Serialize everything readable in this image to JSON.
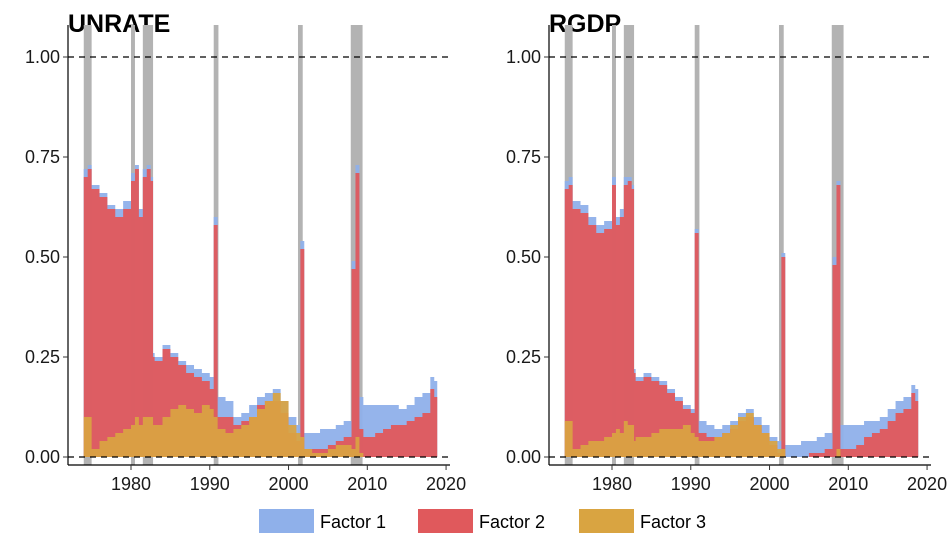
{
  "chart_data": [
    {
      "type": "area",
      "title": "UNRATE",
      "xlabel": "",
      "ylabel": "",
      "xlim": [
        1972,
        2020.5
      ],
      "ylim": [
        -0.02,
        1.08
      ],
      "xticks": [
        1980,
        1990,
        2000,
        2010,
        2020
      ],
      "yticks": [
        "0.00",
        "0.25",
        "0.50",
        "0.75",
        "1.00"
      ],
      "reference_lines": [
        0,
        1
      ],
      "recessions": [
        [
          1974.0,
          1975.0
        ],
        [
          1980.0,
          1980.5
        ],
        [
          1981.5,
          1982.8
        ],
        [
          1990.5,
          1991.1
        ],
        [
          2001.2,
          2001.8
        ],
        [
          2007.9,
          2009.4
        ]
      ],
      "x": [
        1974,
        1974.5,
        1975,
        1976,
        1977,
        1978,
        1979,
        1980,
        1980.5,
        1981,
        1981.5,
        1982,
        1982.5,
        1982.8,
        1983,
        1984,
        1985,
        1986,
        1987,
        1988,
        1989,
        1990,
        1990.5,
        1991,
        1992,
        1993,
        1994,
        1995,
        1996,
        1997,
        1998,
        1999,
        2000,
        2001,
        2001.5,
        2002,
        2003,
        2004,
        2005,
        2006,
        2007,
        2008,
        2008.5,
        2009,
        2009.5,
        2010,
        2011,
        2012,
        2013,
        2014,
        2015,
        2016,
        2017,
        2018,
        2018.5
      ],
      "series": [
        {
          "name": "Factor 1",
          "color": "#8fb0ea",
          "values": [
            0.72,
            0.73,
            0.68,
            0.66,
            0.63,
            0.62,
            0.64,
            0.71,
            0.73,
            0.62,
            0.72,
            0.73,
            0.7,
            0.26,
            0.25,
            0.28,
            0.26,
            0.24,
            0.23,
            0.22,
            0.21,
            0.2,
            0.6,
            0.15,
            0.14,
            0.1,
            0.11,
            0.13,
            0.15,
            0.16,
            0.17,
            0.14,
            0.1,
            0.08,
            0.54,
            0.06,
            0.06,
            0.07,
            0.07,
            0.08,
            0.09,
            0.49,
            0.73,
            0.15,
            0.13,
            0.13,
            0.13,
            0.13,
            0.13,
            0.12,
            0.13,
            0.15,
            0.16,
            0.2,
            0.19
          ]
        },
        {
          "name": "Factor 2",
          "color": "#e0595c",
          "values": [
            0.7,
            0.72,
            0.67,
            0.65,
            0.62,
            0.6,
            0.62,
            0.69,
            0.72,
            0.6,
            0.7,
            0.72,
            0.69,
            0.25,
            0.24,
            0.27,
            0.25,
            0.23,
            0.21,
            0.2,
            0.19,
            0.17,
            0.58,
            0.1,
            0.1,
            0.08,
            0.09,
            0.1,
            0.13,
            0.14,
            0.14,
            0.11,
            0.06,
            0.04,
            0.52,
            0.02,
            0.02,
            0.02,
            0.03,
            0.04,
            0.05,
            0.47,
            0.71,
            0.07,
            0.05,
            0.05,
            0.06,
            0.07,
            0.08,
            0.08,
            0.09,
            0.1,
            0.11,
            0.17,
            0.15
          ]
        },
        {
          "name": "Factor 3",
          "color": "#d9a441",
          "values": [
            0.1,
            0.1,
            0.02,
            0.04,
            0.05,
            0.06,
            0.07,
            0.08,
            0.1,
            0.08,
            0.1,
            0.1,
            0.1,
            0.08,
            0.08,
            0.1,
            0.12,
            0.13,
            0.12,
            0.11,
            0.13,
            0.12,
            0.1,
            0.07,
            0.06,
            0.07,
            0.08,
            0.1,
            0.12,
            0.14,
            0.16,
            0.14,
            0.08,
            0.06,
            0.05,
            0.02,
            0.01,
            0.01,
            0.02,
            0.03,
            0.03,
            0.02,
            0.05,
            0.01,
            0.0,
            0.0,
            0.0,
            0.0,
            0.0,
            0.0,
            0.0,
            0.0,
            0.0,
            0.0,
            0.0
          ]
        }
      ]
    },
    {
      "type": "area",
      "title": "RGDP",
      "xlabel": "",
      "ylabel": "",
      "xlim": [
        1972,
        2020.5
      ],
      "ylim": [
        -0.02,
        1.08
      ],
      "xticks": [
        1980,
        1990,
        2000,
        2010,
        2020
      ],
      "yticks": [
        "0.00",
        "0.25",
        "0.50",
        "0.75",
        "1.00"
      ],
      "reference_lines": [
        0,
        1
      ],
      "recessions": [
        [
          1974.0,
          1975.0
        ],
        [
          1980.0,
          1980.5
        ],
        [
          1981.5,
          1982.8
        ],
        [
          1990.5,
          1991.1
        ],
        [
          2001.2,
          2001.8
        ],
        [
          2007.9,
          2009.4
        ]
      ],
      "x": [
        1974,
        1974.5,
        1975,
        1976,
        1977,
        1978,
        1979,
        1980,
        1980.5,
        1981,
        1981.5,
        1982,
        1982.5,
        1982.8,
        1983,
        1984,
        1985,
        1986,
        1987,
        1988,
        1989,
        1990,
        1990.5,
        1991,
        1992,
        1993,
        1994,
        1995,
        1996,
        1997,
        1998,
        1999,
        2000,
        2001,
        2001.5,
        2002,
        2003,
        2004,
        2005,
        2006,
        2007,
        2008,
        2008.5,
        2009,
        2009.5,
        2010,
        2011,
        2012,
        2013,
        2014,
        2015,
        2016,
        2017,
        2018,
        2018.5
      ],
      "series": [
        {
          "name": "Factor 1",
          "color": "#8fb0ea",
          "values": [
            0.69,
            0.7,
            0.64,
            0.63,
            0.6,
            0.58,
            0.59,
            0.7,
            0.6,
            0.62,
            0.7,
            0.7,
            0.68,
            0.22,
            0.2,
            0.21,
            0.2,
            0.19,
            0.17,
            0.15,
            0.13,
            0.12,
            0.57,
            0.09,
            0.08,
            0.07,
            0.08,
            0.09,
            0.11,
            0.12,
            0.1,
            0.08,
            0.05,
            0.04,
            0.51,
            0.03,
            0.03,
            0.04,
            0.04,
            0.05,
            0.06,
            0.5,
            0.69,
            0.08,
            0.08,
            0.08,
            0.08,
            0.09,
            0.09,
            0.1,
            0.12,
            0.14,
            0.15,
            0.18,
            0.17
          ]
        },
        {
          "name": "Factor 2",
          "color": "#e0595c",
          "values": [
            0.67,
            0.68,
            0.62,
            0.61,
            0.58,
            0.56,
            0.57,
            0.68,
            0.58,
            0.6,
            0.68,
            0.69,
            0.67,
            0.21,
            0.19,
            0.2,
            0.19,
            0.18,
            0.16,
            0.14,
            0.12,
            0.11,
            0.56,
            0.06,
            0.05,
            0.05,
            0.06,
            0.07,
            0.09,
            0.1,
            0.08,
            0.06,
            0.03,
            0.01,
            0.5,
            0.0,
            0.0,
            0.0,
            0.01,
            0.01,
            0.02,
            0.48,
            0.68,
            0.02,
            0.02,
            0.02,
            0.03,
            0.05,
            0.06,
            0.07,
            0.09,
            0.11,
            0.12,
            0.16,
            0.14
          ]
        },
        {
          "name": "Factor 3",
          "color": "#d9a441",
          "values": [
            0.09,
            0.09,
            0.02,
            0.03,
            0.04,
            0.04,
            0.05,
            0.06,
            0.07,
            0.06,
            0.09,
            0.08,
            0.08,
            0.04,
            0.05,
            0.05,
            0.06,
            0.07,
            0.07,
            0.07,
            0.08,
            0.06,
            0.05,
            0.04,
            0.04,
            0.05,
            0.06,
            0.08,
            0.1,
            0.11,
            0.08,
            0.06,
            0.04,
            0.02,
            0.02,
            0.0,
            0.0,
            0.0,
            0.0,
            0.0,
            0.0,
            0.0,
            0.02,
            0.0,
            0.0,
            0.0,
            0.0,
            0.0,
            0.0,
            0.0,
            0.0,
            0.0,
            0.0,
            0.0,
            0.0
          ]
        }
      ]
    }
  ],
  "legend": {
    "placement": "bottom",
    "items": [
      {
        "label": "Factor 1",
        "color": "#8fb0ea"
      },
      {
        "label": "Factor 2",
        "color": "#e0595c"
      },
      {
        "label": "Factor 3",
        "color": "#d9a441"
      }
    ]
  },
  "colors": {
    "recession_band": "#b3b3b3",
    "reference_line": "#000000"
  }
}
